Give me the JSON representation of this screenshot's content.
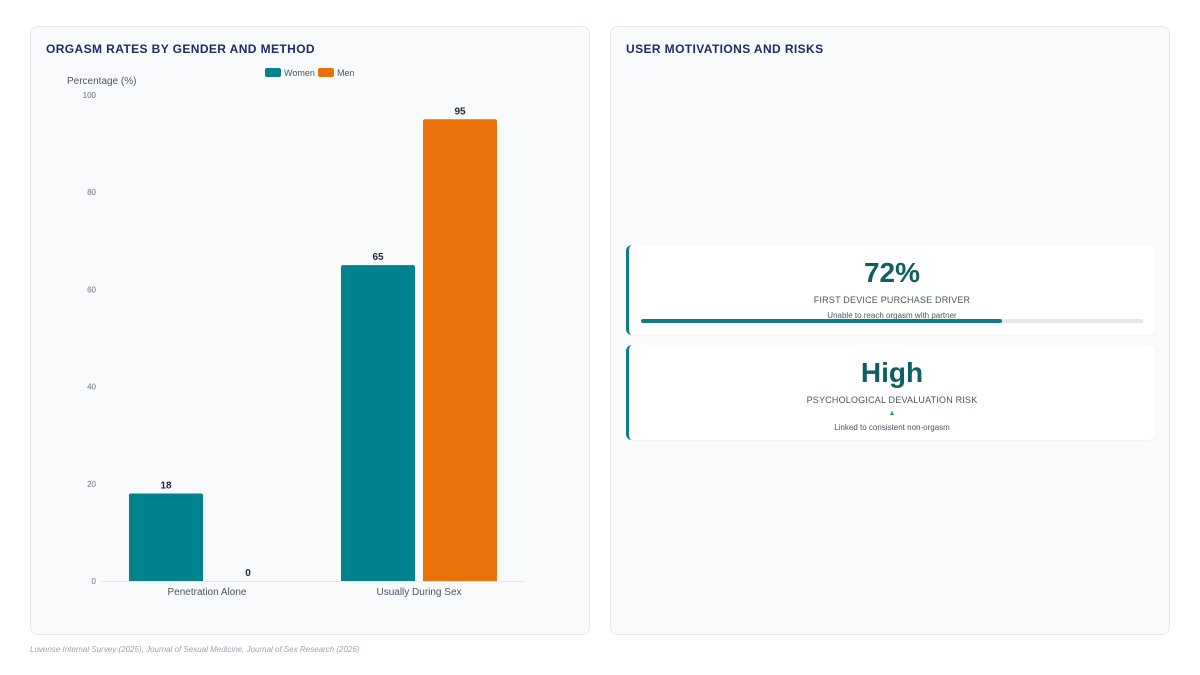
{
  "left_panel": {
    "title": "ORGASM RATES BY GENDER AND METHOD"
  },
  "chart_data": {
    "type": "bar",
    "categories": [
      "Penetration Alone",
      "Usually During Sex"
    ],
    "series": [
      {
        "name": "Women",
        "values": [
          18,
          65
        ],
        "color": "#00838f"
      },
      {
        "name": "Men",
        "values": [
          0,
          95
        ],
        "color": "#e8710a"
      }
    ],
    "ylabel": "Percentage (%)",
    "ylim": [
      0,
      100
    ],
    "yticks": [
      0,
      20,
      40,
      60,
      80,
      100
    ],
    "legend": "top",
    "grid": false,
    "data_labels": true
  },
  "right_panel": {
    "title": "USER MOTIVATIONS AND RISKS",
    "kpi_purchase": {
      "value": "72%",
      "label": "FIRST DEVICE PURCHASE DRIVER",
      "sub": "Unable to reach orgasm with partner",
      "progress": 0.72
    },
    "kpi_risk": {
      "value": "High",
      "label": "PSYCHOLOGICAL DEVALUATION RISK",
      "arrow": "▲",
      "sub": "Linked to consistent non-orgasm"
    }
  },
  "footer": {
    "source": "Lovense Internal Survey (2025), Journal of Sexual Medicine, Journal of Sex Research (2026)"
  }
}
